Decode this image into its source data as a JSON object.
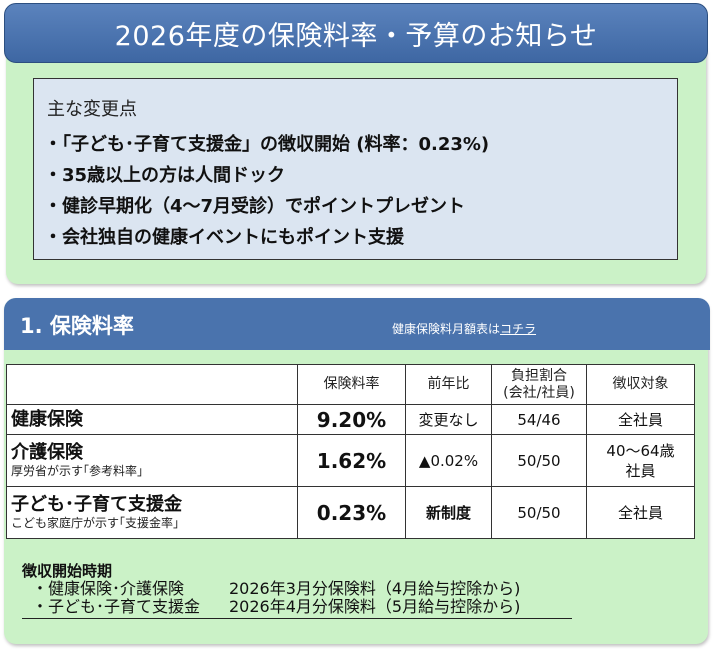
{
  "title": "2026年度の保険料率・予算のお知らせ",
  "changes": {
    "heading": "主な変更点",
    "items": [
      "・「子ども･子育て支援金」の徴収開始 (料率：0.23%)",
      "・35歳以上の方は人間ドック",
      "・健診早期化（4～7月受診）でポイントプレゼント",
      "・会社独自の健康イベントにもポイント支援"
    ]
  },
  "section1": {
    "title": "1.  保険料率",
    "link_prefix": "健康保険料月額表は",
    "link_text": "コチラ"
  },
  "table": {
    "headers": [
      "保険料率",
      "前年比",
      "負担割合",
      "(会社/社員)",
      "徴収対象"
    ],
    "rows": [
      {
        "name": "健康保険",
        "note": "",
        "rate": "9.20%",
        "prev": "変更なし",
        "share": "54/46",
        "target": "全社員"
      },
      {
        "name": "介護保険",
        "note": "厚労省が示す｢参考料率｣",
        "rate": "1.62%",
        "prev": "▲0.02%",
        "share": "50/50",
        "target": "40～64歳",
        "target2": "社員"
      },
      {
        "name": "子ども･子育て支援金",
        "note": "こども家庭庁が示す｢支援金率｣",
        "rate": "0.23%",
        "prev": "新制度",
        "share": "50/50",
        "target": "全社員"
      }
    ]
  },
  "schedule": {
    "heading": "徴収開始時期",
    "rows": [
      {
        "label": "・健康保険･介護保険",
        "value": "2026年3月分保険料（4月給与控除から)"
      },
      {
        "label": "・子ども･子育て支援金",
        "value": "2026年4月分保険料（5月給与控除から)"
      }
    ]
  },
  "colors": {
    "panel_green": "#cbf2c7",
    "header_blue": "#4a73ad",
    "box_blue": "#dbe5f1"
  }
}
